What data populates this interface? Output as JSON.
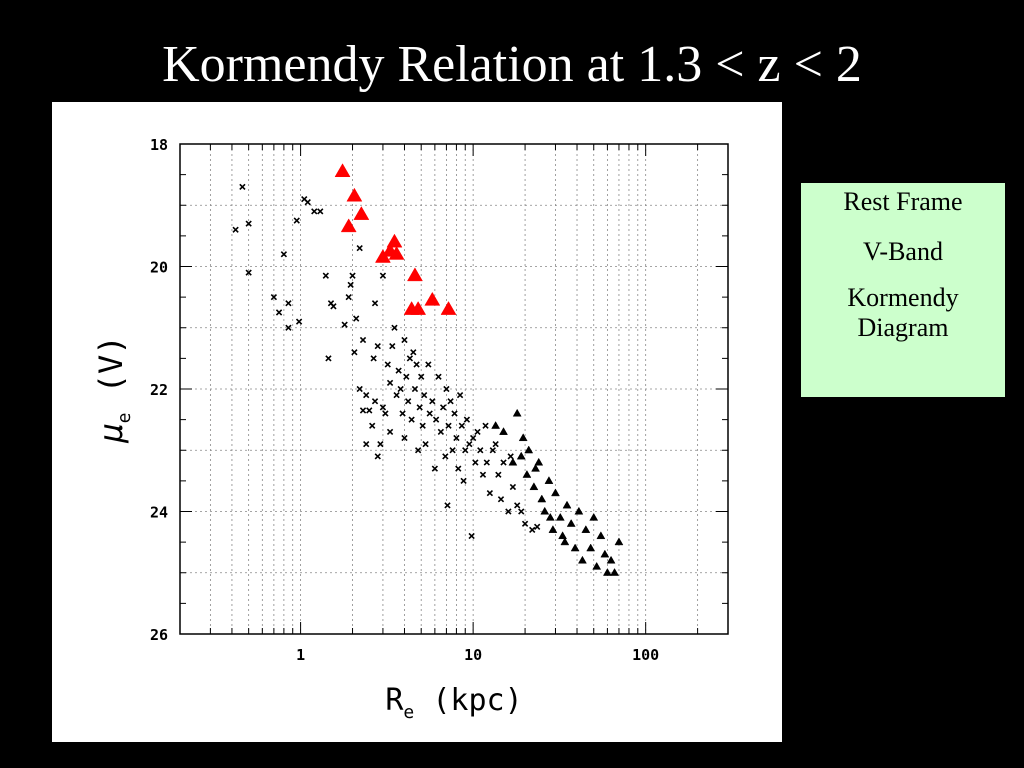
{
  "slide": {
    "title": "Kormendy Relation at 1.3 < z < 2"
  },
  "info_box": {
    "line1": "Rest Frame",
    "line2": "V-Band",
    "line3": "Kormendy",
    "line4": "Diagram",
    "background": "#ccffcc"
  },
  "chart_data": {
    "type": "scatter",
    "title": "",
    "xlabel": "R_e (kpc)",
    "ylabel": "μ_e (V)",
    "xscale": "log",
    "xlim": [
      0.2,
      300
    ],
    "ylim": [
      26,
      18
    ],
    "yaxis_inverted": true,
    "grid": true,
    "x_ticks": [
      {
        "value": 1,
        "label": "1"
      },
      {
        "value": 10,
        "label": "10"
      },
      {
        "value": 100,
        "label": "100"
      }
    ],
    "y_ticks": [
      {
        "value": 18,
        "label": "18"
      },
      {
        "value": 20,
        "label": "20"
      },
      {
        "value": 22,
        "label": "22"
      },
      {
        "value": 24,
        "label": "24"
      },
      {
        "value": 26,
        "label": "26"
      }
    ],
    "series": [
      {
        "marker": "cross",
        "color": "#000000",
        "points": [
          [
            0.42,
            19.4
          ],
          [
            0.46,
            18.7
          ],
          [
            0.5,
            19.3
          ],
          [
            0.5,
            20.1
          ],
          [
            0.7,
            20.5
          ],
          [
            0.75,
            20.75
          ],
          [
            0.8,
            19.8
          ],
          [
            0.85,
            21.0
          ],
          [
            0.85,
            20.6
          ],
          [
            0.95,
            19.25
          ],
          [
            0.98,
            20.9
          ],
          [
            1.05,
            18.9
          ],
          [
            1.1,
            18.95
          ],
          [
            1.2,
            19.1
          ],
          [
            1.3,
            19.1
          ],
          [
            1.4,
            20.15
          ],
          [
            1.45,
            21.5
          ],
          [
            1.5,
            20.6
          ],
          [
            1.55,
            20.65
          ],
          [
            1.8,
            20.95
          ],
          [
            1.9,
            20.5
          ],
          [
            1.95,
            20.3
          ],
          [
            2.0,
            20.15
          ],
          [
            2.05,
            21.4
          ],
          [
            2.1,
            20.85
          ],
          [
            2.2,
            19.7
          ],
          [
            2.2,
            22.0
          ],
          [
            2.3,
            22.35
          ],
          [
            2.3,
            21.2
          ],
          [
            2.4,
            22.1
          ],
          [
            2.4,
            22.9
          ],
          [
            2.5,
            22.35
          ],
          [
            2.6,
            22.6
          ],
          [
            2.65,
            21.5
          ],
          [
            2.7,
            22.2
          ],
          [
            2.7,
            20.6
          ],
          [
            2.8,
            21.3
          ],
          [
            2.8,
            23.1
          ],
          [
            2.9,
            22.9
          ],
          [
            3.0,
            22.3
          ],
          [
            3.0,
            20.15
          ],
          [
            3.1,
            22.4
          ],
          [
            3.2,
            21.6
          ],
          [
            3.3,
            21.9
          ],
          [
            3.3,
            22.7
          ],
          [
            3.4,
            21.3
          ],
          [
            3.5,
            21.0
          ],
          [
            3.6,
            22.1
          ],
          [
            3.7,
            21.7
          ],
          [
            3.8,
            22.0
          ],
          [
            3.9,
            22.4
          ],
          [
            4.0,
            21.2
          ],
          [
            4.0,
            22.8
          ],
          [
            4.1,
            21.8
          ],
          [
            4.2,
            22.2
          ],
          [
            4.3,
            21.5
          ],
          [
            4.4,
            22.5
          ],
          [
            4.5,
            21.4
          ],
          [
            4.6,
            22.0
          ],
          [
            4.7,
            21.6
          ],
          [
            4.8,
            23.0
          ],
          [
            4.9,
            22.3
          ],
          [
            5.0,
            21.8
          ],
          [
            5.1,
            22.6
          ],
          [
            5.2,
            22.1
          ],
          [
            5.3,
            22.9
          ],
          [
            5.5,
            21.6
          ],
          [
            5.6,
            22.4
          ],
          [
            5.8,
            22.2
          ],
          [
            6.0,
            23.3
          ],
          [
            6.1,
            22.5
          ],
          [
            6.3,
            21.8
          ],
          [
            6.5,
            22.7
          ],
          [
            6.7,
            22.3
          ],
          [
            6.9,
            23.1
          ],
          [
            7.0,
            22.0
          ],
          [
            7.1,
            23.9
          ],
          [
            7.2,
            22.6
          ],
          [
            7.4,
            22.2
          ],
          [
            7.6,
            23.0
          ],
          [
            7.8,
            22.4
          ],
          [
            8.0,
            22.8
          ],
          [
            8.2,
            23.3
          ],
          [
            8.4,
            22.1
          ],
          [
            8.6,
            22.6
          ],
          [
            8.8,
            23.5
          ],
          [
            9.0,
            23.0
          ],
          [
            9.2,
            22.5
          ],
          [
            9.5,
            22.9
          ],
          [
            9.8,
            24.4
          ],
          [
            10.0,
            22.8
          ],
          [
            10.3,
            23.2
          ],
          [
            10.6,
            22.7
          ],
          [
            11.0,
            23.0
          ],
          [
            11.4,
            23.4
          ],
          [
            11.8,
            22.6
          ],
          [
            12.0,
            23.2
          ],
          [
            12.5,
            23.7
          ],
          [
            13.0,
            23.0
          ],
          [
            13.5,
            22.9
          ],
          [
            14.0,
            23.4
          ],
          [
            14.5,
            23.8
          ],
          [
            15.0,
            23.2
          ],
          [
            16.0,
            24.0
          ],
          [
            16.5,
            23.1
          ],
          [
            17.0,
            23.6
          ],
          [
            18.0,
            23.9
          ],
          [
            19.0,
            24.0
          ],
          [
            20.0,
            24.2
          ],
          [
            22.0,
            24.3
          ],
          [
            23.5,
            24.25
          ]
        ]
      },
      {
        "marker": "triangle",
        "color": "#000000",
        "points": [
          [
            13.5,
            22.6
          ],
          [
            15.0,
            22.7
          ],
          [
            17.0,
            23.2
          ],
          [
            18.0,
            22.4
          ],
          [
            19.5,
            22.8
          ],
          [
            20.5,
            23.4
          ],
          [
            21.0,
            23.0
          ],
          [
            22.5,
            23.6
          ],
          [
            24.0,
            23.2
          ],
          [
            25.0,
            23.8
          ],
          [
            26.0,
            24.0
          ],
          [
            27.5,
            23.5
          ],
          [
            29.0,
            24.3
          ],
          [
            30.0,
            23.7
          ],
          [
            32.0,
            24.1
          ],
          [
            34.0,
            24.5
          ],
          [
            35.0,
            23.9
          ],
          [
            37.0,
            24.2
          ],
          [
            39.0,
            24.6
          ],
          [
            41.0,
            24.0
          ],
          [
            43.0,
            24.8
          ],
          [
            45.0,
            24.3
          ],
          [
            48.0,
            24.6
          ],
          [
            50.0,
            24.1
          ],
          [
            52.0,
            24.9
          ],
          [
            55.0,
            24.4
          ],
          [
            58.0,
            24.7
          ],
          [
            60.0,
            25.0
          ],
          [
            63.0,
            24.8
          ],
          [
            66.0,
            25.0
          ],
          [
            70.0,
            24.5
          ],
          [
            33.0,
            24.4
          ],
          [
            28.0,
            24.1
          ],
          [
            23.0,
            23.3
          ],
          [
            19.0,
            23.1
          ]
        ]
      },
      {
        "marker": "triangle",
        "color": "#ff0000",
        "points": [
          [
            1.75,
            18.45
          ],
          [
            2.05,
            18.85
          ],
          [
            2.25,
            19.15
          ],
          [
            1.9,
            19.35
          ],
          [
            3.0,
            19.85
          ],
          [
            3.3,
            19.75
          ],
          [
            3.5,
            19.6
          ],
          [
            3.6,
            19.8
          ],
          [
            4.6,
            20.15
          ],
          [
            4.4,
            20.7
          ],
          [
            4.8,
            20.7
          ],
          [
            5.8,
            20.55
          ],
          [
            7.2,
            20.7
          ]
        ]
      }
    ]
  }
}
